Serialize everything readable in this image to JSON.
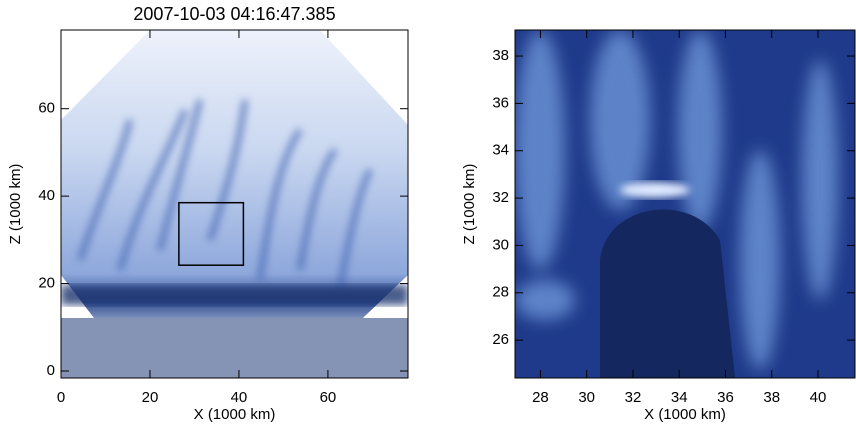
{
  "chart_data": [
    {
      "type": "image",
      "title": "2007-10-03 04:16:47.385",
      "xlabel": "X (1000 km)",
      "ylabel": "Z (1000 km)",
      "xlim": [
        0,
        78
      ],
      "ylim": [
        -1.6,
        78
      ],
      "xticks": [
        0,
        20,
        40,
        60
      ],
      "yticks": [
        0,
        20,
        40,
        60
      ],
      "box": {
        "x": [
          26.5,
          41
        ],
        "z": [
          24.2,
          38.5
        ]
      }
    },
    {
      "type": "image",
      "xlabel": "X (1000 km)",
      "ylabel": "Z (1000 km)",
      "xlim": [
        26.9,
        41.6
      ],
      "ylim": [
        24.4,
        39.1
      ],
      "xticks": [
        28,
        30,
        32,
        34,
        36,
        38,
        40
      ],
      "yticks": [
        26,
        28,
        30,
        32,
        34,
        36,
        38
      ]
    }
  ]
}
